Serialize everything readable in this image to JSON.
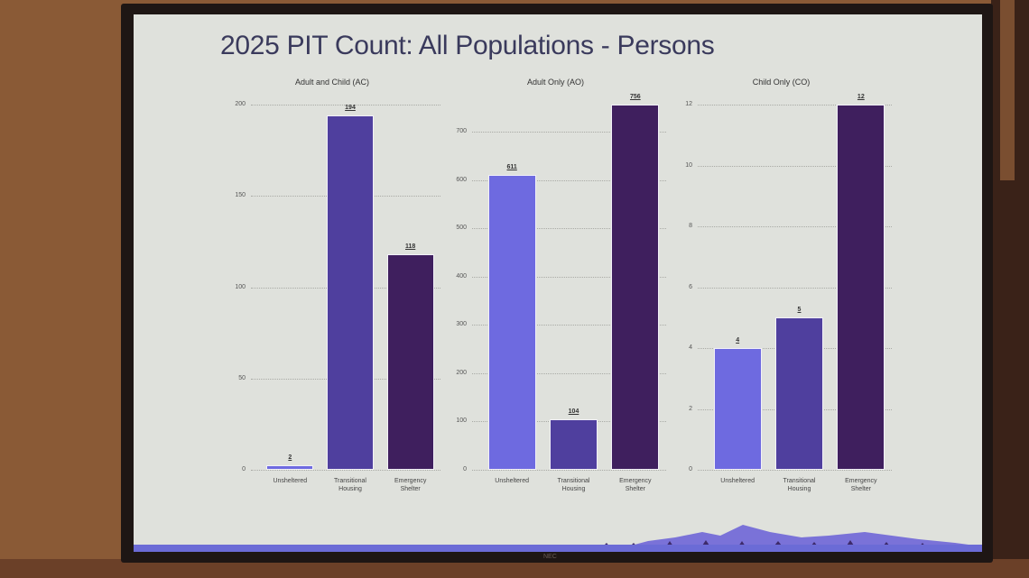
{
  "slide": {
    "title": "2025 PIT Count: All Populations - Persons",
    "bezel_brand": "NEC"
  },
  "colors": {
    "unsheltered": "#6e6ae0",
    "transitional_housing": "#4f3f9e",
    "emergency_shelter": "#3f1f5e",
    "mountains": "#7a72d8",
    "trees": "#3d2a6a"
  },
  "chart_data": [
    {
      "type": "bar",
      "title": "Adult and Child (AC)",
      "categories": [
        "Unsheltered",
        "Transitional Housing",
        "Emergency Shelter"
      ],
      "values": [
        2,
        194,
        118
      ],
      "yticks": [
        0,
        50,
        100,
        150,
        200
      ],
      "ylim": [
        0,
        200
      ],
      "xlabel": "",
      "ylabel": "",
      "grid": true
    },
    {
      "type": "bar",
      "title": "Adult Only (AO)",
      "categories": [
        "Unsheltered",
        "Transitional Housing",
        "Emergency Shelter"
      ],
      "values": [
        611,
        104,
        756
      ],
      "yticks": [
        0,
        100,
        200,
        300,
        400,
        500,
        600,
        700
      ],
      "ylim": [
        0,
        756
      ],
      "xlabel": "",
      "ylabel": "",
      "grid": true
    },
    {
      "type": "bar",
      "title": "Child Only (CO)",
      "categories": [
        "Unsheltered",
        "Transitional Housing",
        "Emergency Shelter"
      ],
      "values": [
        4,
        5,
        12
      ],
      "yticks": [
        0,
        2,
        4,
        6,
        8,
        10,
        12
      ],
      "ylim": [
        0,
        12
      ],
      "xlabel": "",
      "ylabel": "",
      "grid": true
    }
  ]
}
